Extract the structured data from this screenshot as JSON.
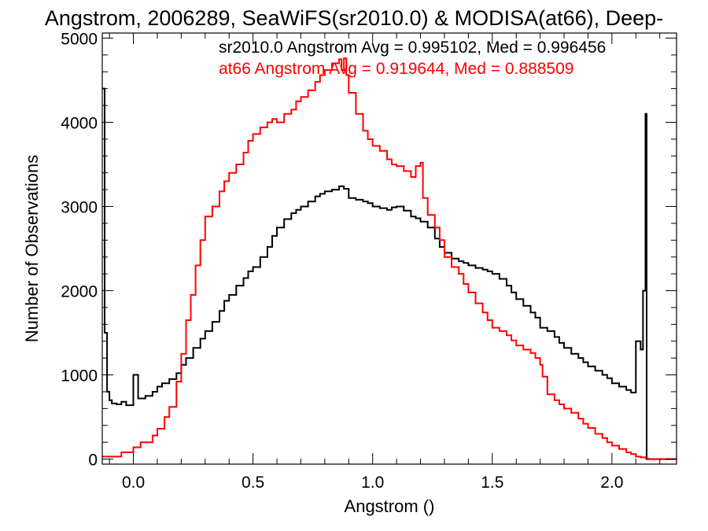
{
  "chart_data": {
    "type": "line",
    "title": "Angstrom, 2006289, SeaWiFS(sr2010.0) & MODISA(at66), Deep-",
    "xlabel": "Angstrom ()",
    "ylabel": "Number of Observations",
    "xlim": [
      -0.13,
      2.27
    ],
    "ylim": [
      -60,
      5060
    ],
    "x_ticks": [
      0.0,
      0.5,
      1.0,
      1.5,
      2.0
    ],
    "x_tick_labels": [
      "0.0",
      "0.5",
      "1.0",
      "1.5",
      "2.0"
    ],
    "y_ticks": [
      0,
      1000,
      2000,
      3000,
      4000,
      5000
    ],
    "y_tick_labels": [
      "0",
      "1000",
      "2000",
      "3000",
      "4000",
      "5000"
    ],
    "grid": false,
    "annotations": [
      {
        "text": "sr2010.0 Angstrom Avg = 0.995102, Med = 0.996456",
        "color": "#000000"
      },
      {
        "text": "at66 Angstrom Avg = 0.919644, Med = 0.888509",
        "color": "#ff0000"
      }
    ],
    "series": [
      {
        "color": "#000000",
        "x": [
          -0.13,
          -0.12,
          -0.11,
          -0.1,
          -0.09,
          -0.07,
          -0.05,
          -0.03,
          0.0,
          0.02,
          0.05,
          0.08,
          0.1,
          0.12,
          0.15,
          0.18,
          0.2,
          0.22,
          0.25,
          0.28,
          0.3,
          0.33,
          0.36,
          0.38,
          0.4,
          0.43,
          0.46,
          0.48,
          0.5,
          0.53,
          0.56,
          0.58,
          0.6,
          0.63,
          0.66,
          0.68,
          0.7,
          0.73,
          0.76,
          0.78,
          0.8,
          0.83,
          0.86,
          0.88,
          0.9,
          0.93,
          0.96,
          0.98,
          1.0,
          1.03,
          1.06,
          1.08,
          1.1,
          1.13,
          1.16,
          1.18,
          1.2,
          1.23,
          1.26,
          1.28,
          1.3,
          1.33,
          1.36,
          1.38,
          1.4,
          1.43,
          1.46,
          1.48,
          1.5,
          1.53,
          1.56,
          1.58,
          1.6,
          1.63,
          1.66,
          1.68,
          1.7,
          1.73,
          1.76,
          1.78,
          1.8,
          1.83,
          1.86,
          1.88,
          1.9,
          1.93,
          1.96,
          1.98,
          2.0,
          2.03,
          2.06,
          2.08,
          2.1,
          2.12,
          2.13,
          2.14,
          2.145,
          2.15,
          2.155,
          2.16,
          2.17,
          2.2,
          2.27
        ],
        "y": [
          4400,
          1500,
          800,
          700,
          660,
          650,
          680,
          640,
          1000,
          720,
          750,
          800,
          860,
          900,
          950,
          1020,
          1120,
          1200,
          1320,
          1430,
          1520,
          1630,
          1760,
          1880,
          1950,
          2060,
          2150,
          2230,
          2280,
          2400,
          2520,
          2650,
          2750,
          2850,
          2920,
          2960,
          3000,
          3060,
          3120,
          3150,
          3180,
          3200,
          3240,
          3210,
          3100,
          3080,
          3060,
          3040,
          3000,
          2980,
          2960,
          2990,
          3000,
          2950,
          2880,
          2860,
          2820,
          2750,
          2620,
          2520,
          2450,
          2380,
          2350,
          2330,
          2300,
          2270,
          2250,
          2230,
          2200,
          2140,
          2060,
          1980,
          1900,
          1820,
          1740,
          1680,
          1560,
          1520,
          1450,
          1380,
          1320,
          1250,
          1200,
          1150,
          1100,
          1050,
          1000,
          960,
          900,
          860,
          820,
          790,
          1400,
          1300,
          2000,
          4100,
          0,
          0,
          0,
          0,
          0,
          0,
          0
        ]
      },
      {
        "color": "#ff0000",
        "x": [
          -0.13,
          -0.1,
          -0.05,
          0.0,
          0.03,
          0.08,
          0.1,
          0.13,
          0.15,
          0.18,
          0.2,
          0.22,
          0.24,
          0.26,
          0.28,
          0.3,
          0.33,
          0.36,
          0.38,
          0.4,
          0.43,
          0.46,
          0.48,
          0.5,
          0.53,
          0.56,
          0.58,
          0.6,
          0.63,
          0.66,
          0.68,
          0.7,
          0.73,
          0.76,
          0.78,
          0.8,
          0.83,
          0.86,
          0.87,
          0.88,
          0.89,
          0.9,
          0.93,
          0.96,
          0.98,
          1.0,
          1.03,
          1.06,
          1.08,
          1.1,
          1.13,
          1.16,
          1.18,
          1.2,
          1.21,
          1.23,
          1.26,
          1.28,
          1.3,
          1.33,
          1.36,
          1.38,
          1.4,
          1.43,
          1.46,
          1.48,
          1.5,
          1.53,
          1.56,
          1.58,
          1.6,
          1.63,
          1.66,
          1.68,
          1.7,
          1.71,
          1.73,
          1.76,
          1.78,
          1.8,
          1.83,
          1.86,
          1.88,
          1.9,
          1.93,
          1.96,
          1.98,
          2.0,
          2.03,
          2.06,
          2.08,
          2.1,
          2.12,
          2.14,
          2.15,
          2.16,
          2.2,
          2.27
        ],
        "y": [
          30,
          30,
          80,
          140,
          200,
          280,
          360,
          500,
          620,
          920,
          1250,
          1650,
          1950,
          2300,
          2600,
          2880,
          3000,
          3180,
          3300,
          3400,
          3500,
          3640,
          3780,
          3860,
          3940,
          4000,
          4040,
          4000,
          4100,
          4150,
          4250,
          4300,
          4380,
          4480,
          4560,
          4620,
          4700,
          4750,
          4620,
          4760,
          4560,
          4350,
          4100,
          3900,
          3800,
          3720,
          3660,
          3560,
          3500,
          3480,
          3420,
          3350,
          3480,
          3520,
          3100,
          2900,
          2750,
          2600,
          2400,
          2280,
          2200,
          2080,
          1980,
          1850,
          1740,
          1650,
          1560,
          1520,
          1470,
          1410,
          1350,
          1300,
          1260,
          1200,
          1120,
          980,
          770,
          700,
          650,
          600,
          550,
          480,
          420,
          370,
          300,
          250,
          200,
          160,
          120,
          80,
          60,
          30,
          20,
          10,
          0,
          0,
          0,
          0
        ]
      }
    ]
  }
}
